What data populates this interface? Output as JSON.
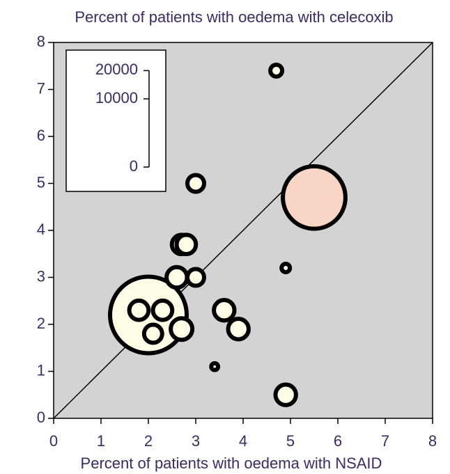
{
  "chart_data": {
    "type": "bubble",
    "title": "Percent of patients with oedema with celecoxib",
    "x_label": "Percent of patients with oedema with NSAID",
    "x": [
      2.0,
      5.5,
      4.7,
      3.0,
      2.7,
      2.8,
      4.9,
      2.6,
      3.0,
      1.8,
      2.3,
      2.1,
      2.7,
      3.6,
      3.9,
      3.4,
      4.9
    ],
    "values": [
      2.2,
      4.7,
      7.4,
      5.0,
      3.7,
      3.7,
      3.2,
      3.0,
      3.0,
      2.3,
      2.3,
      1.8,
      1.9,
      2.3,
      1.9,
      1.1,
      0.5
    ],
    "sizes": [
      12600,
      8400,
      300,
      600,
      800,
      800,
      150,
      900,
      600,
      800,
      800,
      700,
      1000,
      900,
      900,
      100,
      900
    ],
    "colors": [
      "#fffde6",
      "#f9d5c6",
      "#fffde6",
      "#fffde6",
      "#fffde6",
      "#fffde6",
      "#fffde6",
      "#fffde6",
      "#fffde6",
      "#fffde6",
      "#fffde6",
      "#fffde6",
      "#fffde6",
      "#fffde6",
      "#fffde6",
      "#fffde6",
      "#fffde6"
    ],
    "xlim": [
      0,
      8
    ],
    "xticks": [
      0,
      1,
      2,
      3,
      4,
      5,
      6,
      7,
      8
    ],
    "ylim": [
      0,
      8
    ],
    "yticks": [
      0,
      1,
      2,
      3,
      4,
      5,
      6,
      7,
      8
    ],
    "size_ticks": [
      0,
      10000,
      20000
    ],
    "diagonal": true,
    "background": "#d3d3d3"
  }
}
